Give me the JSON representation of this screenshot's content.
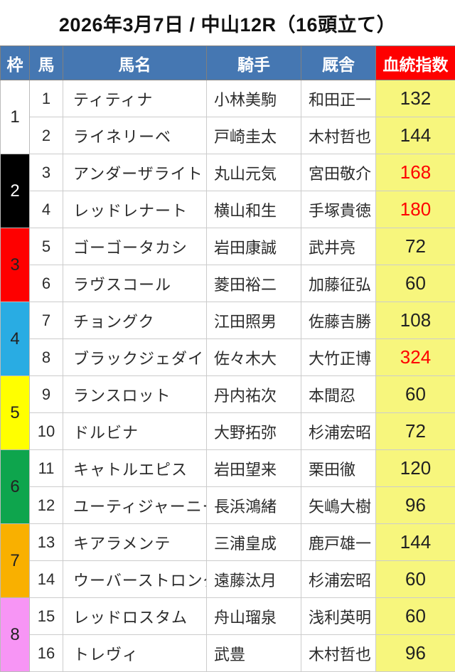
{
  "title": "2026年3月7日 / 中山12R（16頭立て）",
  "colors": {
    "header_bg": "#4577b2",
    "header_text": "#ffffff",
    "index_header_bg": "#fe0000",
    "index_cell_bg": "#f7f67d",
    "normal_value": "#212121",
    "highlight_value": "#fe0000",
    "border_light": "#cccccc",
    "border_dark": "#7f7f7f",
    "page_bottom": "#ebebf0"
  },
  "table": {
    "headers": [
      "枠",
      "馬",
      "馬名",
      "騎手",
      "厩舎",
      "血統指数"
    ],
    "frames": [
      {
        "number": "1",
        "bg": "#ffffff",
        "fg": "#222222"
      },
      {
        "number": "2",
        "bg": "#000000",
        "fg": "#ffffff"
      },
      {
        "number": "3",
        "bg": "#fe0000",
        "fg": "#222222"
      },
      {
        "number": "4",
        "bg": "#29ace3",
        "fg": "#222222"
      },
      {
        "number": "5",
        "bg": "#ffff00",
        "fg": "#222222"
      },
      {
        "number": "6",
        "bg": "#0ea54d",
        "fg": "#222222"
      },
      {
        "number": "7",
        "bg": "#f9b000",
        "fg": "#222222"
      },
      {
        "number": "8",
        "bg": "#f795f5",
        "fg": "#222222"
      }
    ],
    "rows": [
      {
        "no": "1",
        "name": "ティティナ",
        "jockey": "小林美駒",
        "stable": "和田正一",
        "index": "132",
        "index_color": "#212121"
      },
      {
        "no": "2",
        "name": "ライネリーベ",
        "jockey": "戸崎圭太",
        "stable": "木村哲也",
        "index": "144",
        "index_color": "#212121"
      },
      {
        "no": "3",
        "name": "アンダーザライト",
        "jockey": "丸山元気",
        "stable": "宮田敬介",
        "index": "168",
        "index_color": "#fe0000"
      },
      {
        "no": "4",
        "name": "レッドレナート",
        "jockey": "横山和生",
        "stable": "手塚貴徳",
        "index": "180",
        "index_color": "#fe0000"
      },
      {
        "no": "5",
        "name": "ゴーゴータカシ",
        "jockey": "岩田康誠",
        "stable": "武井亮",
        "index": "72",
        "index_color": "#212121"
      },
      {
        "no": "6",
        "name": "ラヴスコール",
        "jockey": "菱田裕二",
        "stable": "加藤征弘",
        "index": "60",
        "index_color": "#212121"
      },
      {
        "no": "7",
        "name": "チョングク",
        "jockey": "江田照男",
        "stable": "佐藤吉勝",
        "index": "108",
        "index_color": "#212121"
      },
      {
        "no": "8",
        "name": "ブラックジェダイト",
        "jockey": "佐々木大",
        "stable": "大竹正博",
        "index": "324",
        "index_color": "#fe0000"
      },
      {
        "no": "9",
        "name": "ランスロット",
        "jockey": "丹内祐次",
        "stable": "本間忍",
        "index": "60",
        "index_color": "#212121"
      },
      {
        "no": "10",
        "name": "ドルビナ",
        "jockey": "大野拓弥",
        "stable": "杉浦宏昭",
        "index": "72",
        "index_color": "#212121"
      },
      {
        "no": "11",
        "name": "キャトルエピス",
        "jockey": "岩田望来",
        "stable": "栗田徹",
        "index": "120",
        "index_color": "#212121"
      },
      {
        "no": "12",
        "name": "ユーティジャーニー",
        "jockey": "長浜鴻緒",
        "stable": "矢嶋大樹",
        "index": "96",
        "index_color": "#212121"
      },
      {
        "no": "13",
        "name": "キアラメンテ",
        "jockey": "三浦皇成",
        "stable": "鹿戸雄一",
        "index": "144",
        "index_color": "#212121"
      },
      {
        "no": "14",
        "name": "ウーバーストロング",
        "jockey": "遠藤汰月",
        "stable": "杉浦宏昭",
        "index": "60",
        "index_color": "#212121"
      },
      {
        "no": "15",
        "name": "レッドロスタム",
        "jockey": "舟山瑠泉",
        "stable": "浅利英明",
        "index": "60",
        "index_color": "#212121"
      },
      {
        "no": "16",
        "name": "トレヴィ",
        "jockey": "武豊",
        "stable": "木村哲也",
        "index": "96",
        "index_color": "#212121"
      }
    ]
  }
}
